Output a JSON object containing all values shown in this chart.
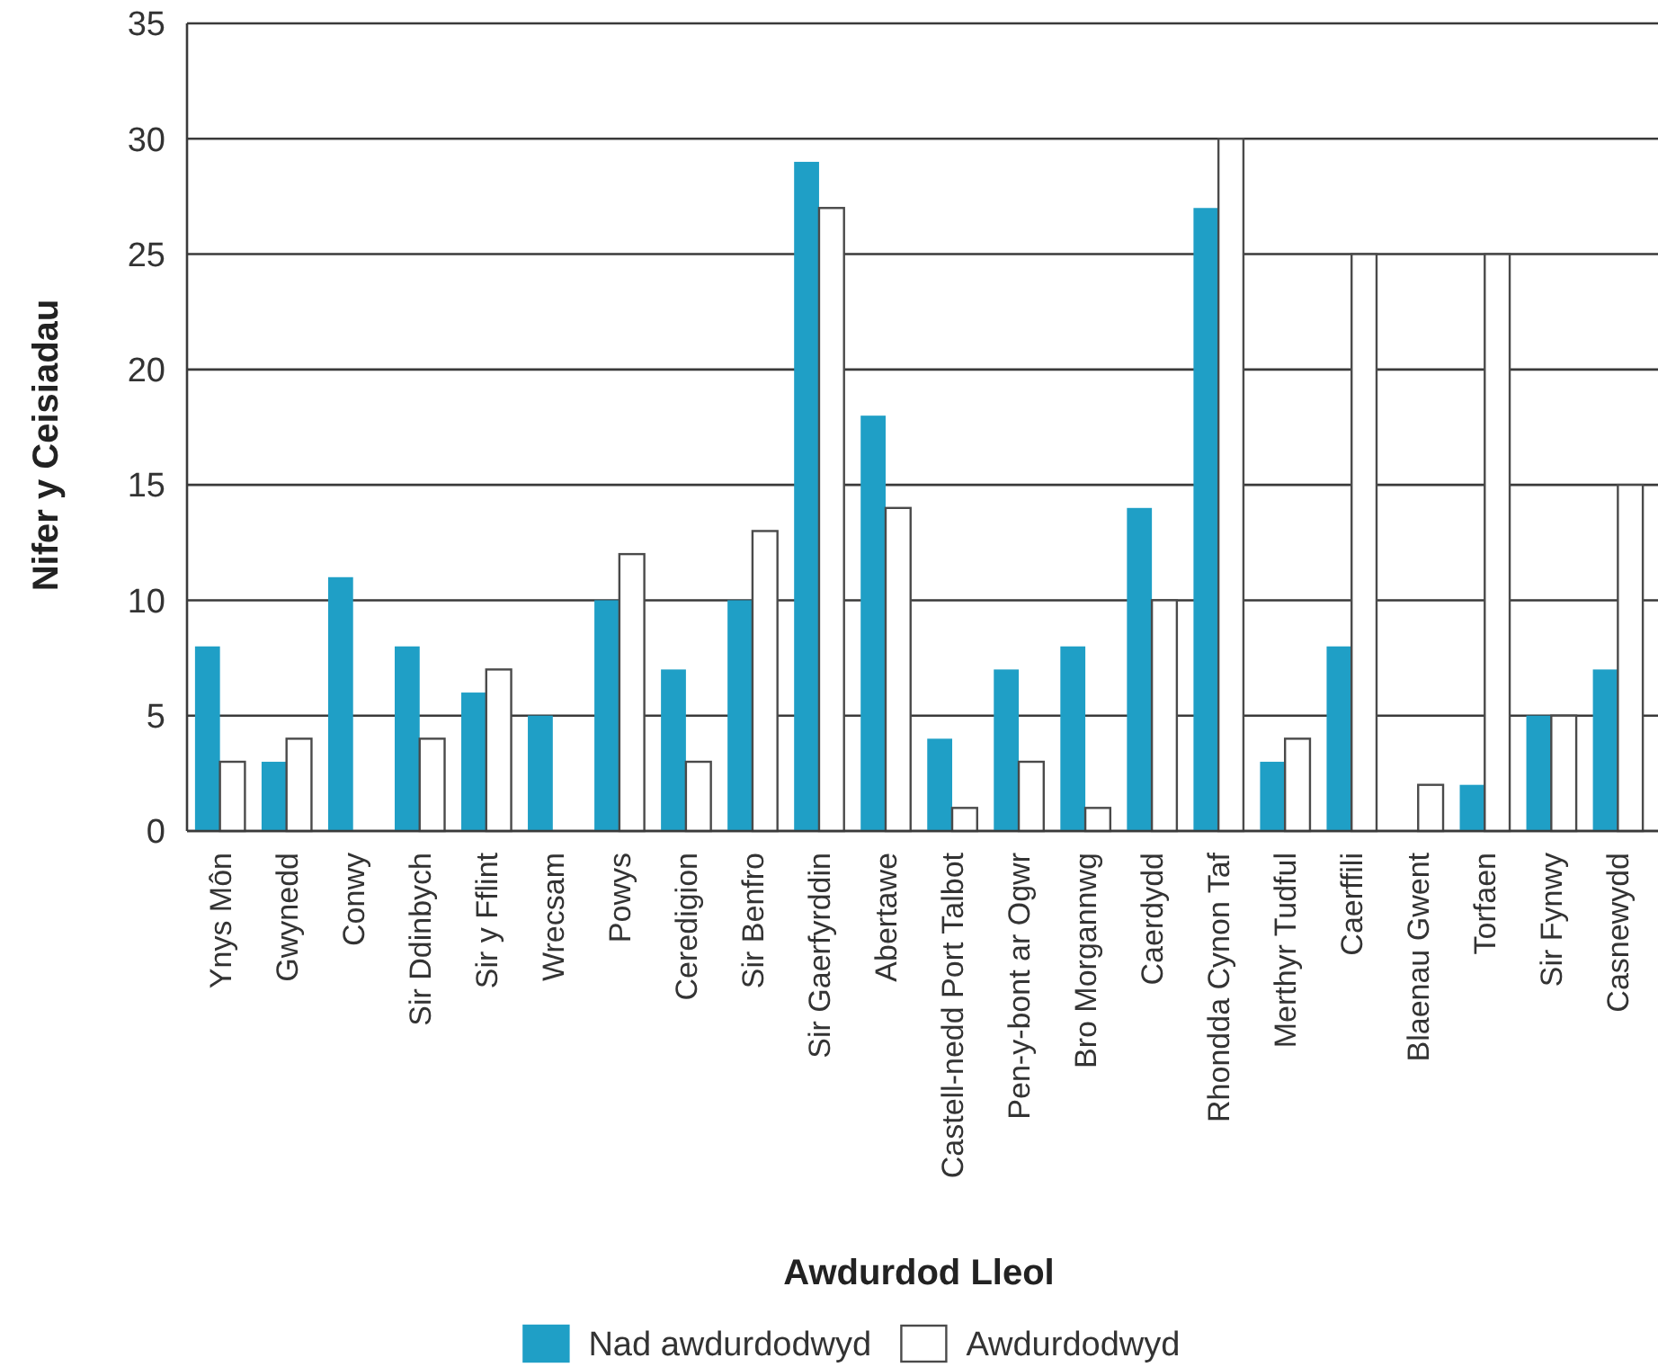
{
  "chart_data": {
    "type": "bar",
    "xlabel": "Awdurdod Lleol",
    "ylabel": "Nifer y Ceisiadau",
    "categories": [
      "Ynys Môn",
      "Gwynedd",
      "Conwy",
      "Sir Ddinbych",
      "Sir y Fflint",
      "Wrecsam",
      "Powys",
      "Ceredigion",
      "Sir Benfro",
      "Sir Gaerfyrddin",
      "Abertawe",
      "Castell-nedd Port Talbot",
      "Pen-y-bont ar Ogwr",
      "Bro Morgannwg",
      "Caerdydd",
      "Rhondda Cynon Taf",
      "Merthyr Tudful",
      "Caerffili",
      "Blaenau Gwent",
      "Torfaen",
      "Sir Fynwy",
      "Casnewydd"
    ],
    "series": [
      {
        "name": "Nad awdurdodwyd",
        "color": "#1f9fc6",
        "values": [
          8,
          3,
          11,
          8,
          6,
          5,
          10,
          7,
          10,
          29,
          18,
          4,
          7,
          8,
          14,
          27,
          3,
          8,
          0,
          2,
          5,
          7
        ]
      },
      {
        "name": "Awdurdodwyd",
        "color": "#ffffff",
        "values": [
          3,
          4,
          0,
          4,
          7,
          0,
          12,
          3,
          13,
          27,
          14,
          1,
          3,
          1,
          10,
          30,
          4,
          25,
          2,
          25,
          5,
          15
        ]
      }
    ],
    "ylim": [
      0,
      35
    ],
    "yticks": [
      0,
      5,
      10,
      15,
      20,
      25,
      30,
      35
    ],
    "grid": "y",
    "legend": "bottom"
  }
}
